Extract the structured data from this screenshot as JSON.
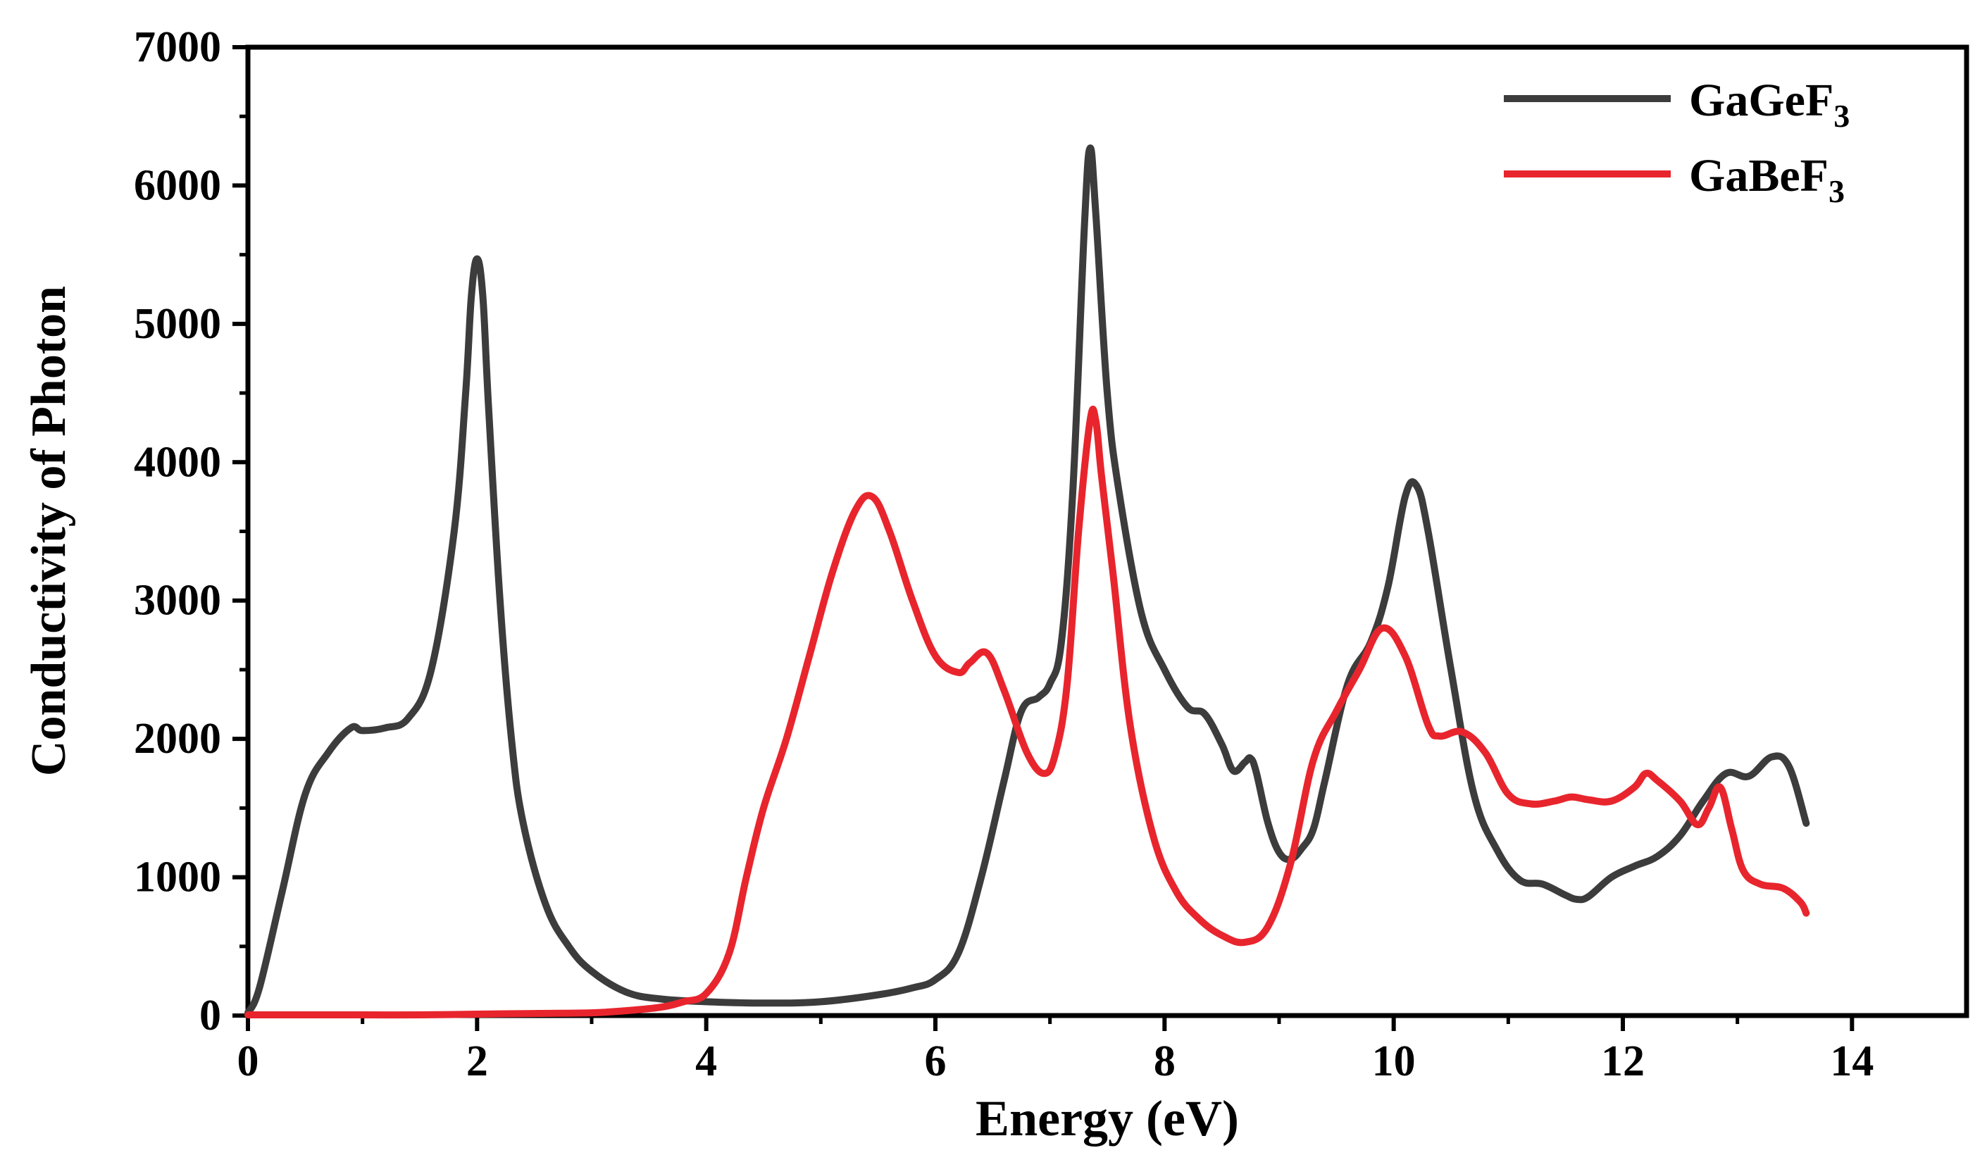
{
  "chart_data": {
    "type": "line",
    "title": "",
    "xlabel": "Energy (eV)",
    "ylabel": "Conductivity of Photon",
    "xlim": [
      0,
      15
    ],
    "ylim": [
      0,
      7000
    ],
    "xticks": [
      0,
      2,
      4,
      6,
      8,
      10,
      12,
      14
    ],
    "yticks": [
      0,
      1000,
      2000,
      3000,
      4000,
      5000,
      6000,
      7000
    ],
    "grid": false,
    "legend_position": "top-right",
    "series": [
      {
        "name": "GaGeF3",
        "label_main": "GaGeF",
        "label_sub": "3",
        "color": "#3c3c3c",
        "x": [
          0,
          0.1,
          0.3,
          0.5,
          0.7,
          0.9,
          1.0,
          1.2,
          1.4,
          1.6,
          1.8,
          1.9,
          1.95,
          2.0,
          2.05,
          2.1,
          2.2,
          2.3,
          2.4,
          2.6,
          2.8,
          3.0,
          3.3,
          3.6,
          4.0,
          4.5,
          5.0,
          5.5,
          5.8,
          6.0,
          6.2,
          6.4,
          6.6,
          6.75,
          6.9,
          7.0,
          7.1,
          7.2,
          7.3,
          7.35,
          7.4,
          7.5,
          7.6,
          7.8,
          8.0,
          8.2,
          8.35,
          8.5,
          8.6,
          8.7,
          8.75,
          8.8,
          8.9,
          9.0,
          9.1,
          9.2,
          9.3,
          9.4,
          9.6,
          9.8,
          9.95,
          10.1,
          10.2,
          10.3,
          10.5,
          10.7,
          10.9,
          11.1,
          11.3,
          11.5,
          11.6,
          11.7,
          11.9,
          12.1,
          12.3,
          12.5,
          12.7,
          12.9,
          13.1,
          13.3,
          13.45,
          13.6
        ],
        "values": [
          20,
          200,
          900,
          1600,
          1900,
          2080,
          2060,
          2080,
          2150,
          2500,
          3500,
          4500,
          5200,
          5470,
          5200,
          4400,
          3000,
          2000,
          1400,
          800,
          500,
          320,
          170,
          120,
          100,
          90,
          100,
          150,
          200,
          260,
          450,
          1000,
          1700,
          2200,
          2300,
          2400,
          2700,
          3800,
          5700,
          6270,
          5800,
          4500,
          3800,
          2900,
          2500,
          2230,
          2180,
          1960,
          1770,
          1830,
          1860,
          1760,
          1400,
          1180,
          1130,
          1210,
          1350,
          1700,
          2400,
          2700,
          3100,
          3750,
          3830,
          3500,
          2500,
          1600,
          1200,
          980,
          950,
          870,
          840,
          860,
          1000,
          1080,
          1150,
          1300,
          1550,
          1750,
          1730,
          1870,
          1800,
          1390
        ]
      },
      {
        "name": "GaBeF3",
        "label_main": "GaBeF",
        "label_sub": "3",
        "color": "#e8252d",
        "x": [
          0,
          0.5,
          1.0,
          1.5,
          2.0,
          2.5,
          3.0,
          3.3,
          3.6,
          3.8,
          4.0,
          4.2,
          4.35,
          4.5,
          4.7,
          4.9,
          5.1,
          5.3,
          5.45,
          5.6,
          5.8,
          6.0,
          6.2,
          6.3,
          6.45,
          6.6,
          6.8,
          6.95,
          7.05,
          7.15,
          7.25,
          7.35,
          7.4,
          7.45,
          7.55,
          7.7,
          7.9,
          8.1,
          8.3,
          8.5,
          8.7,
          8.9,
          9.1,
          9.3,
          9.5,
          9.7,
          9.9,
          10.1,
          10.3,
          10.4,
          10.6,
          10.8,
          11.0,
          11.2,
          11.4,
          11.55,
          11.7,
          11.9,
          12.1,
          12.2,
          12.3,
          12.5,
          12.65,
          12.75,
          12.85,
          12.95,
          13.05,
          13.2,
          13.4,
          13.55,
          13.6
        ],
        "values": [
          5,
          5,
          5,
          5,
          10,
          15,
          20,
          35,
          60,
          100,
          160,
          450,
          1000,
          1500,
          2000,
          2600,
          3200,
          3650,
          3750,
          3500,
          3000,
          2600,
          2480,
          2550,
          2620,
          2350,
          1900,
          1750,
          1900,
          2400,
          3500,
          4300,
          4300,
          3900,
          3200,
          2100,
          1300,
          900,
          700,
          580,
          530,
          640,
          1100,
          1850,
          2200,
          2500,
          2800,
          2600,
          2100,
          2020,
          2050,
          1900,
          1600,
          1530,
          1550,
          1580,
          1560,
          1550,
          1650,
          1750,
          1700,
          1550,
          1380,
          1500,
          1650,
          1350,
          1050,
          950,
          920,
          820,
          740
        ]
      }
    ]
  }
}
